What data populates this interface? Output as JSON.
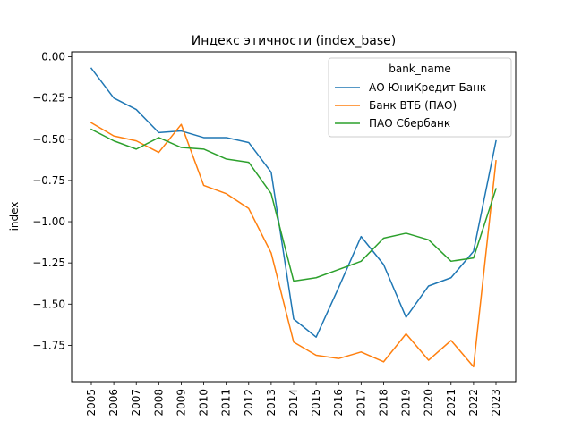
{
  "chart_data": {
    "type": "line",
    "title": "Индекс этичности (index_base)",
    "xlabel": "",
    "ylabel": "index",
    "x": [
      2005,
      2006,
      2007,
      2008,
      2009,
      2010,
      2011,
      2012,
      2013,
      2014,
      2015,
      2016,
      2017,
      2018,
      2019,
      2020,
      2021,
      2022,
      2023
    ],
    "x_tick_labels": [
      "2005",
      "2006",
      "2007",
      "2008",
      "2009",
      "2010",
      "2011",
      "2012",
      "2013",
      "2014",
      "2015",
      "2016",
      "2017",
      "2018",
      "2019",
      "2020",
      "2021",
      "2022",
      "2023"
    ],
    "y_ticks": [
      0.0,
      -0.25,
      -0.5,
      -0.75,
      -1.0,
      -1.25,
      -1.5,
      -1.75
    ],
    "y_tick_labels": [
      "0.00",
      "−0.25",
      "−0.50",
      "−0.75",
      "−1.00",
      "−1.25",
      "−1.50",
      "−1.75"
    ],
    "ylim": [
      -1.97,
      0.03
    ],
    "grid": false,
    "legend": {
      "title": "bank_name",
      "placement": "top-right"
    },
    "series": [
      {
        "name": "АО ЮниКредит Банк",
        "color": "#1f77b4",
        "values": [
          -0.07,
          -0.25,
          -0.32,
          -0.46,
          -0.45,
          -0.49,
          -0.49,
          -0.52,
          -0.7,
          -1.59,
          -1.7,
          -1.4,
          -1.09,
          -1.26,
          -1.58,
          -1.39,
          -1.34,
          -1.18,
          -0.51
        ]
      },
      {
        "name": "Банк ВТБ (ПАО)",
        "color": "#ff7f0e",
        "values": [
          -0.4,
          -0.48,
          -0.51,
          -0.58,
          -0.41,
          -0.78,
          -0.83,
          -0.92,
          -1.19,
          -1.73,
          -1.81,
          -1.83,
          -1.79,
          -1.85,
          -1.68,
          -1.84,
          -1.72,
          -1.88,
          -0.63
        ]
      },
      {
        "name": "ПАО Сбербанк",
        "color": "#2ca02c",
        "values": [
          -0.44,
          -0.51,
          -0.56,
          -0.49,
          -0.55,
          -0.56,
          -0.62,
          -0.64,
          -0.83,
          -1.36,
          -1.34,
          -1.29,
          -1.24,
          -1.1,
          -1.07,
          -1.11,
          -1.24,
          -1.22,
          -0.8
        ]
      }
    ]
  }
}
